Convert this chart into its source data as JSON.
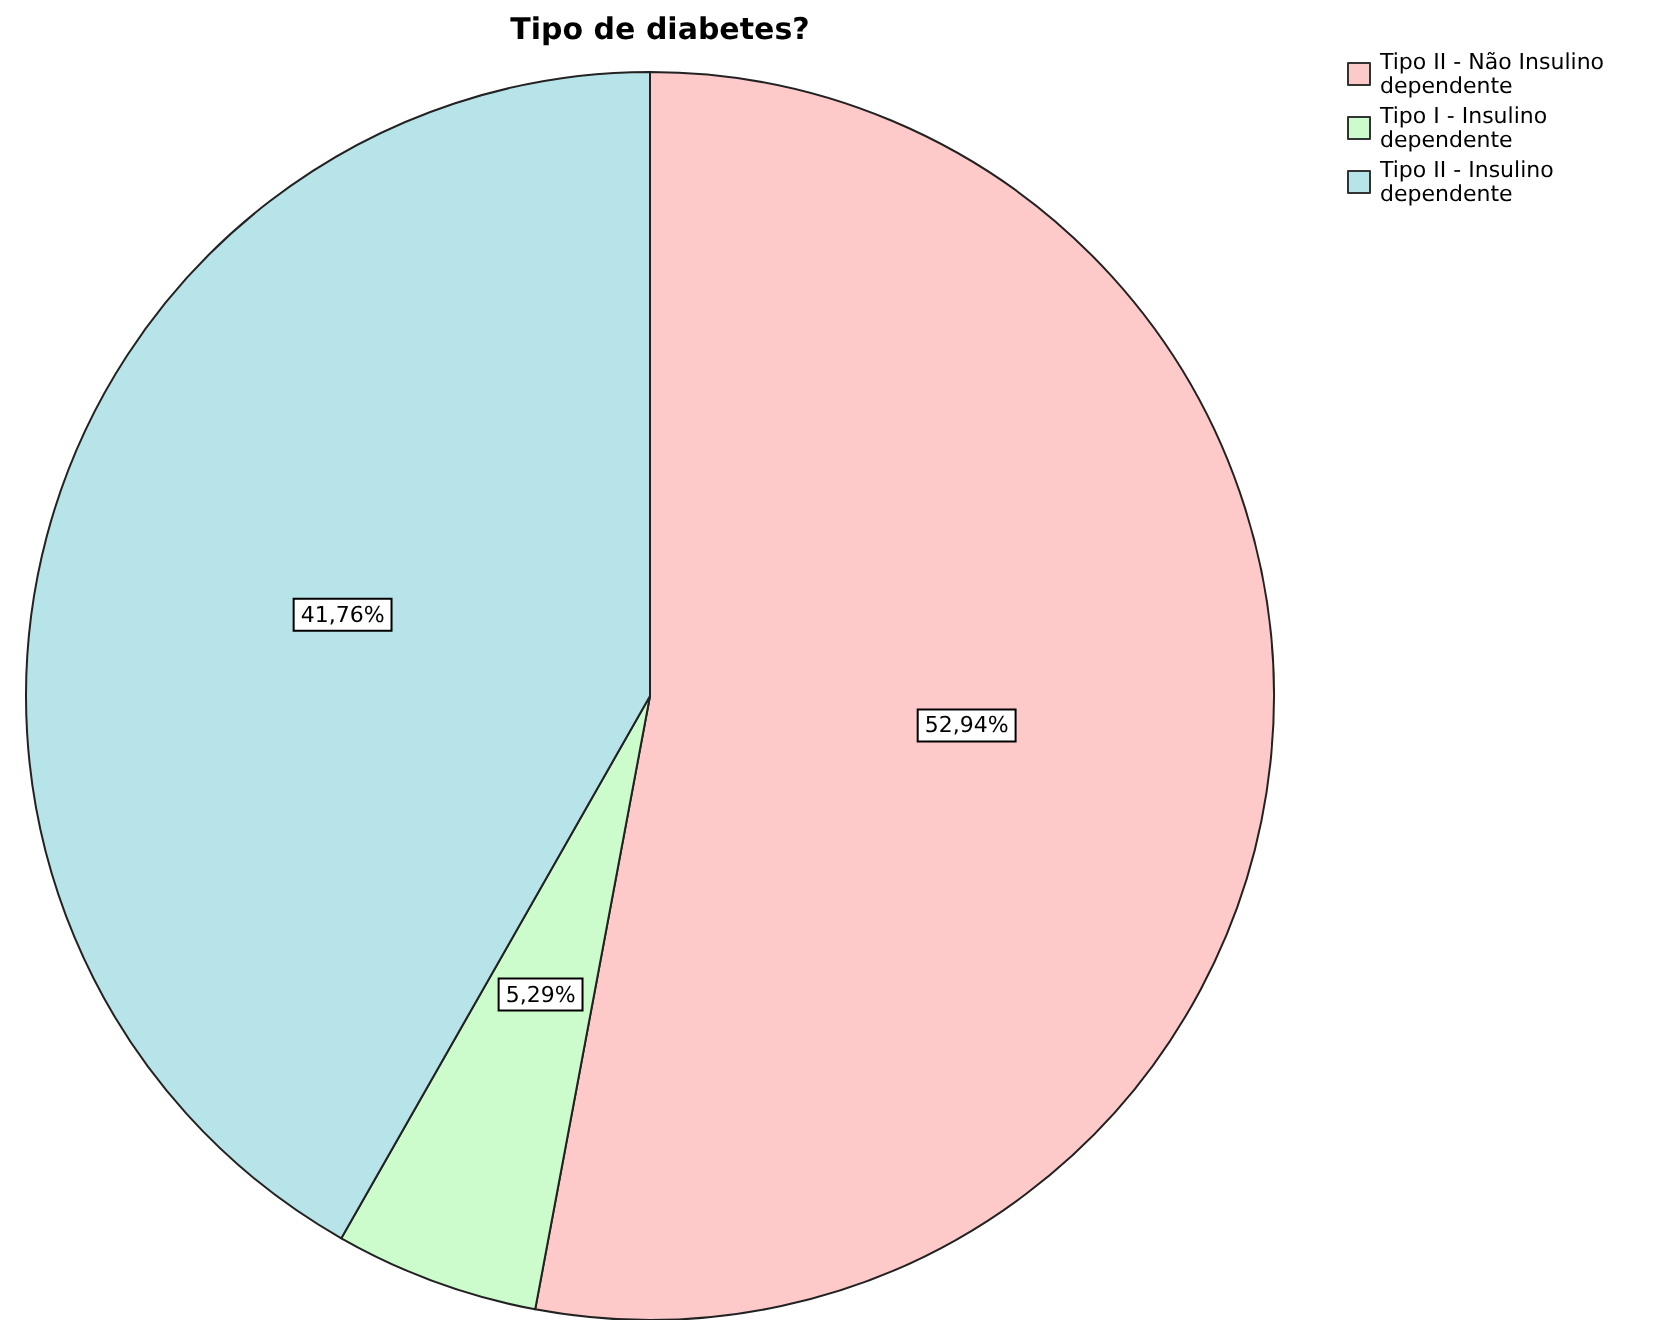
{
  "chart_data": {
    "type": "pie",
    "title": "Tipo de diabetes?",
    "categories": [
      "Tipo II - Não Insulino dependente",
      "Tipo I - Insulino dependente",
      "Tipo II - Insulino dependente"
    ],
    "values": [
      52.94,
      5.29,
      41.76
    ],
    "colors": [
      "#fdc9c9",
      "#ccfccc",
      "#b6e4e8"
    ],
    "value_labels": [
      "52,94%",
      "5,29%",
      "41,76%"
    ],
    "legend": "top right"
  }
}
